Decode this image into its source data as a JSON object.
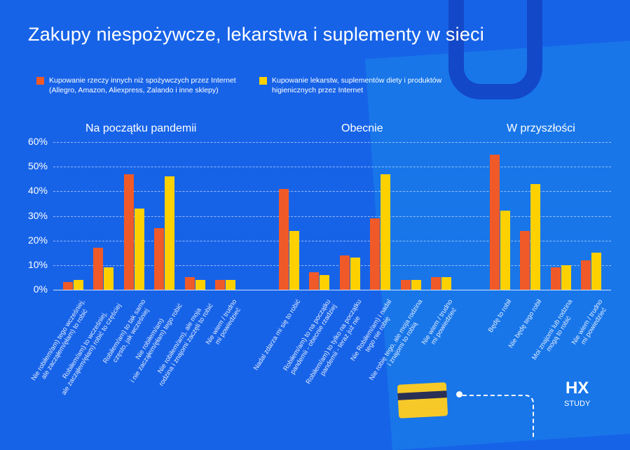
{
  "title": "Zakupy niespożywcze, lekarstwa i suplementy w sieci",
  "colors": {
    "series1": "#f05a28",
    "series2": "#fdd000",
    "background": "#1763e8"
  },
  "logo": {
    "main": "HX",
    "sub": "STUDY"
  },
  "chart_data": {
    "type": "bar",
    "title": "Zakupy niespożywcze, lekarstwa i suplementy w sieci",
    "ylim": [
      0,
      60
    ],
    "yticks": [
      "0%",
      "10%",
      "20%",
      "30%",
      "40%",
      "50%",
      "60%"
    ],
    "legend": [
      "Kupowanie rzeczy innych niż spożywczych przez Internet\n(Allegro, Amazon, Aliexpress, Zalando i inne sklepy)",
      "Kupowanie lekarstw, suplementów diety i produktów\nhigienicznych przez Internet"
    ],
    "groups": [
      {
        "title": "Na początku pandemii",
        "categories": [
          {
            "label": "Nie robiłem/am) tego wcześniej,\nale zacząłem/ęłam) to robić",
            "values": [
              3,
              4
            ]
          },
          {
            "label": "Robiłem/am) to wcześniej,\nale zacząłem/ęłam) robić to częściej",
            "values": [
              17,
              9
            ]
          },
          {
            "label": "Robiłem/am) to tak samo\nczęsto, jak wcześniej",
            "values": [
              47,
              33
            ]
          },
          {
            "label": "Nie robiłem/am)\ni nie zacząłem/ęłam) tego robić",
            "values": [
              25,
              46
            ]
          },
          {
            "label": "Nie robiłem/am), ale moja\nrodzina i znajomi zaczęli to robić",
            "values": [
              5,
              4
            ]
          },
          {
            "label": "Nie wiem / trudno\nmi powiedzieć",
            "values": [
              4,
              4
            ]
          }
        ]
      },
      {
        "title": "Obecnie",
        "categories": [
          {
            "label": "Nadal zdarza mi się to robić",
            "values": [
              41,
              24
            ]
          },
          {
            "label": "Robiłem/am) to na początku\npandemii - obecnie rzadziej",
            "values": [
              7,
              6
            ]
          },
          {
            "label": "Robiłem/am) to tylko na początku\npandemii - teraz już nie",
            "values": [
              14,
              13
            ]
          },
          {
            "label": "Nie Robiłem/am) i nadal\ntego nie robię",
            "values": [
              29,
              47
            ]
          },
          {
            "label": "Nie robię tego, ale moja rodzina\ni znajomi to robią",
            "values": [
              4,
              4
            ]
          },
          {
            "label": "Nie wiem / trudno\nmi powiedzieć",
            "values": [
              5,
              5
            ]
          }
        ]
      },
      {
        "title": "W przyszłości",
        "categories": [
          {
            "label": "Będę to robił",
            "values": [
              55,
              32
            ]
          },
          {
            "label": "Nie będę tego robił",
            "values": [
              24,
              43
            ]
          },
          {
            "label": "Moi znajomi lub rodzina\nmogą to robić",
            "values": [
              9,
              10
            ]
          },
          {
            "label": "Nie wiem / trudno\nmi powiedzieć",
            "values": [
              12,
              15
            ]
          }
        ]
      }
    ]
  }
}
